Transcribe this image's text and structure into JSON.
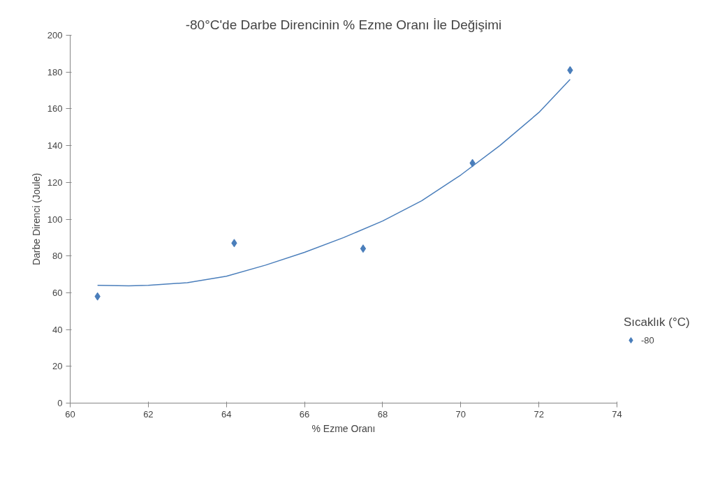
{
  "chart_data": {
    "type": "scatter",
    "title": "-80°C'de Darbe Direncinin % Ezme Oranı İle Değişimi",
    "xlabel": "% Ezme Oranı",
    "ylabel": "Darbe Direnci (Joule)",
    "legend_title": "Sıcaklık (°C)",
    "series": [
      {
        "name": "-80",
        "color": "#4a7ebb",
        "type": "scatter",
        "marker": "diamond",
        "x": [
          60.7,
          64.2,
          67.5,
          70.3,
          72.8
        ],
        "values": [
          58,
          87,
          84,
          130.5,
          181
        ]
      },
      {
        "color": "#4a7ebb",
        "type": "line",
        "marker": "none",
        "x": [
          60.7,
          61.5,
          62,
          63,
          64,
          65,
          66,
          67,
          68,
          69,
          70,
          71,
          72,
          72.8
        ],
        "values": [
          64,
          63.8,
          64,
          65.5,
          69,
          75,
          82,
          90,
          99,
          110,
          124,
          140,
          158,
          176
        ]
      }
    ],
    "xlim": [
      60,
      74
    ],
    "xticks": [
      60,
      62,
      64,
      66,
      68,
      70,
      72,
      74
    ],
    "ylim": [
      0,
      200
    ],
    "yticks": [
      0,
      20,
      40,
      60,
      80,
      100,
      120,
      140,
      160,
      180,
      200
    ],
    "grid": false,
    "legend": "right"
  }
}
